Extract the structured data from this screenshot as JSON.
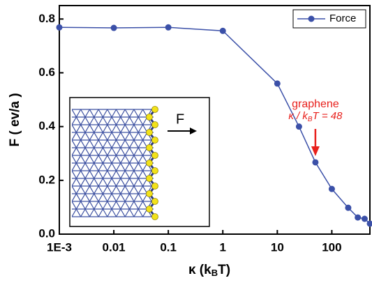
{
  "chart_data": {
    "type": "line",
    "xscale": "log",
    "xlabel": [
      "κ (k",
      "B",
      "T)"
    ],
    "ylabel": "F ( ev/a )",
    "x": [
      0.001,
      0.01,
      0.1,
      1,
      10,
      25,
      50,
      100,
      200,
      300,
      400,
      500
    ],
    "series": [
      {
        "name": "Force",
        "color": "#3b50a8",
        "values": [
          0.769,
          0.767,
          0.769,
          0.756,
          0.56,
          0.4,
          0.267,
          0.168,
          0.098,
          0.062,
          0.057,
          0.039
        ]
      }
    ],
    "xlim": [
      0.001,
      500
    ],
    "ylim": [
      0,
      0.85
    ],
    "xticks": [
      {
        "value": 0.001,
        "label": "1E-3"
      },
      0.01,
      0.1,
      1,
      10,
      100
    ],
    "yticks": [
      {
        "value": 0,
        "label": "0.0"
      },
      0.2,
      0.4,
      0.6,
      0.8
    ],
    "legend": "upper right",
    "annotation": {
      "title": "graphene",
      "formula": [
        "κ / k",
        "B",
        "T = 48"
      ],
      "x": 50,
      "color": "#e8201c"
    },
    "inset": {
      "force_label": "F"
    }
  }
}
